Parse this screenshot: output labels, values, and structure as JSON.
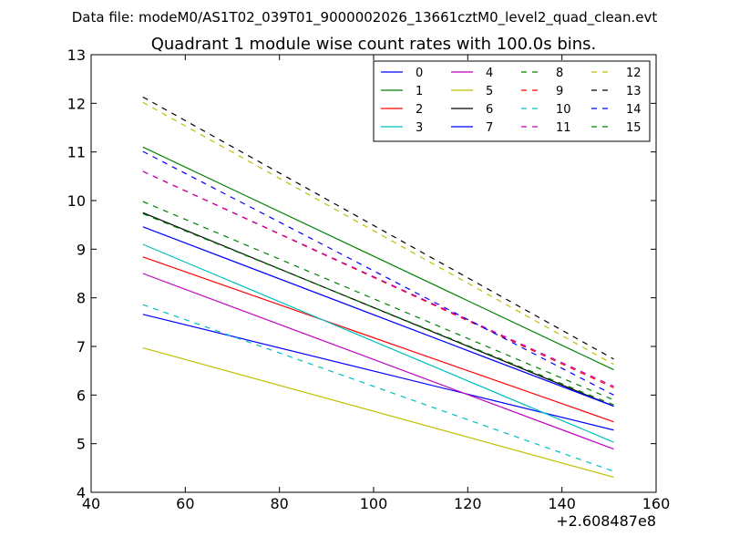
{
  "suptitle": "Data file: modeM0/AS1T02_039T01_9000002026_13661cztM0_level2_quad_clean.evt",
  "chart_data": {
    "type": "line",
    "title": "Quadrant 1 module wise count rates with 100.0s bins.",
    "xlabel": "",
    "ylabel": "",
    "x_offset_label": "+2.608487e8",
    "xlim": [
      40,
      160
    ],
    "ylim": [
      4,
      13
    ],
    "xticks": [
      40,
      60,
      80,
      100,
      120,
      140,
      160
    ],
    "yticks": [
      4,
      5,
      6,
      7,
      8,
      9,
      10,
      11,
      12,
      13
    ],
    "grid": false,
    "legend_position": "top-right",
    "legend_columns": 4,
    "x": [
      51,
      151
    ],
    "series": [
      {
        "name": "0",
        "color": "#0000ff",
        "style": "solid",
        "values": [
          7.66,
          5.28
        ]
      },
      {
        "name": "1",
        "color": "#008000",
        "style": "solid",
        "values": [
          11.1,
          6.52
        ]
      },
      {
        "name": "2",
        "color": "#ff0000",
        "style": "solid",
        "values": [
          8.84,
          5.45
        ]
      },
      {
        "name": "3",
        "color": "#00bfbf",
        "style": "solid",
        "values": [
          9.1,
          5.03
        ]
      },
      {
        "name": "4",
        "color": "#bf00bf",
        "style": "solid",
        "values": [
          8.5,
          4.89
        ]
      },
      {
        "name": "5",
        "color": "#bfbf00",
        "style": "solid",
        "values": [
          6.97,
          4.31
        ]
      },
      {
        "name": "6",
        "color": "#000000",
        "style": "solid",
        "values": [
          9.75,
          5.77
        ]
      },
      {
        "name": "7",
        "color": "#0000ff",
        "style": "solid",
        "values": [
          9.46,
          5.77
        ]
      },
      {
        "name": "8",
        "color": "#008000",
        "style": "dashed",
        "values": [
          9.98,
          5.9
        ]
      },
      {
        "name": "9",
        "color": "#ff0000",
        "style": "dashed",
        "values": [
          10.6,
          6.15
        ]
      },
      {
        "name": "10",
        "color": "#00bfbf",
        "style": "dashed",
        "values": [
          7.86,
          4.43
        ]
      },
      {
        "name": "11",
        "color": "#bf00bf",
        "style": "dashed",
        "values": [
          10.6,
          6.18
        ]
      },
      {
        "name": "12",
        "color": "#bfbf00",
        "style": "dashed",
        "values": [
          12.02,
          6.63
        ]
      },
      {
        "name": "13",
        "color": "#000000",
        "style": "dashed",
        "values": [
          12.13,
          6.74
        ]
      },
      {
        "name": "14",
        "color": "#0000ff",
        "style": "dashed",
        "values": [
          11.01,
          6.0
        ]
      },
      {
        "name": "15",
        "color": "#008000",
        "style": "dashed",
        "values": [
          9.73,
          5.8
        ]
      }
    ]
  }
}
